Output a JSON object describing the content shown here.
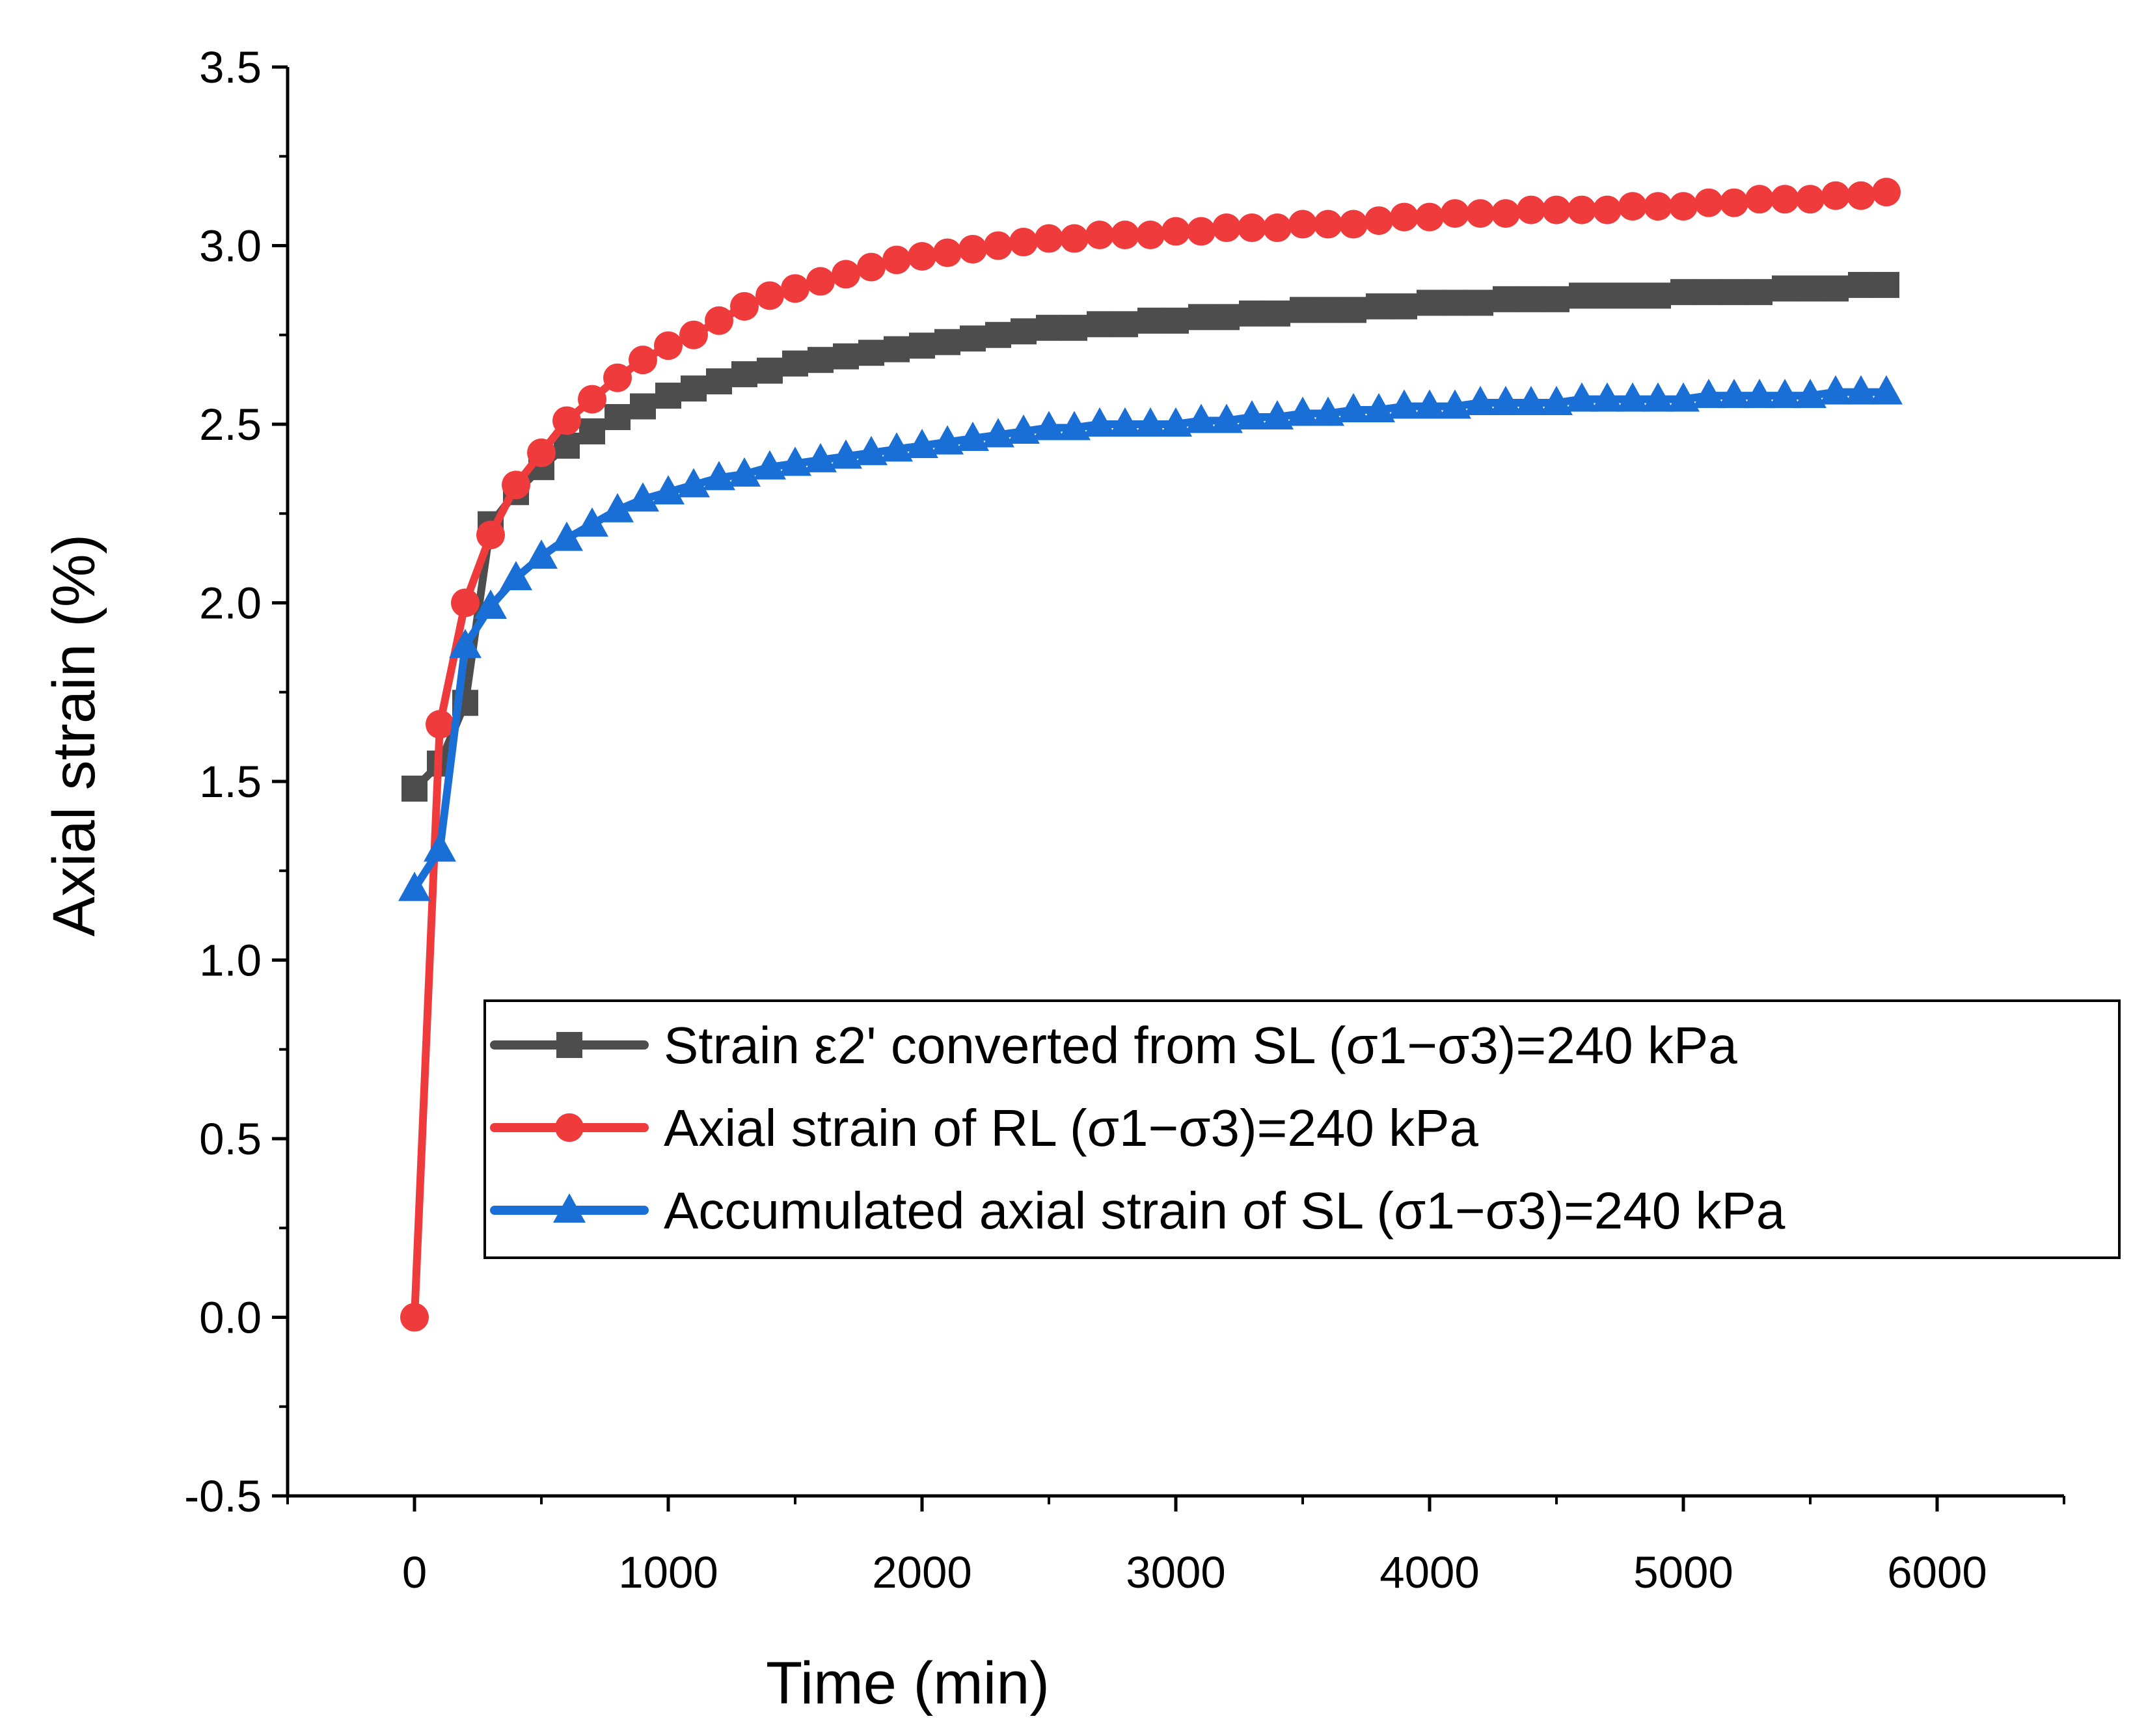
{
  "chart_data": {
    "type": "line",
    "title": "",
    "xlabel": "Time (min)",
    "ylabel": "Axial strain (%)",
    "xlim": [
      -500,
      6500
    ],
    "ylim": [
      -0.5,
      3.5
    ],
    "x_ticks": [
      0,
      1000,
      2000,
      3000,
      4000,
      5000,
      6000
    ],
    "x_tick_labels": [
      "0",
      "1000",
      "2000",
      "3000",
      "4000",
      "5000",
      "6000"
    ],
    "y_ticks": [
      -0.5,
      0.0,
      0.5,
      1.0,
      1.5,
      2.0,
      2.5,
      3.0,
      3.5
    ],
    "y_tick_labels": [
      "-0.5",
      "0.0",
      "0.5",
      "1.0",
      "1.5",
      "2.0",
      "2.5",
      "3.0",
      "3.5"
    ],
    "grid": false,
    "legend_position": "center-right",
    "series": [
      {
        "name": "Strain ε2' converted from SL (σ1−σ3)=240 kPa",
        "color": "#4d4d4d",
        "marker": "square",
        "x": [
          0,
          100,
          200,
          300,
          400,
          500,
          600,
          700,
          800,
          900,
          1000,
          1100,
          1200,
          1300,
          1400,
          1500,
          1600,
          1700,
          1800,
          1900,
          2000,
          2100,
          2200,
          2300,
          2400,
          2500,
          2600,
          2700,
          2800,
          2900,
          3000,
          3100,
          3200,
          3300,
          3400,
          3500,
          3600,
          3700,
          3800,
          3900,
          4000,
          4100,
          4200,
          4300,
          4400,
          4500,
          4600,
          4700,
          4800,
          4900,
          5000,
          5100,
          5200,
          5300,
          5400,
          5500,
          5600,
          5700,
          5800
        ],
        "values": [
          1.48,
          1.55,
          1.72,
          2.22,
          2.31,
          2.38,
          2.44,
          2.48,
          2.52,
          2.55,
          2.58,
          2.6,
          2.62,
          2.64,
          2.65,
          2.67,
          2.68,
          2.69,
          2.7,
          2.71,
          2.72,
          2.73,
          2.74,
          2.75,
          2.76,
          2.77,
          2.77,
          2.78,
          2.78,
          2.79,
          2.79,
          2.8,
          2.8,
          2.81,
          2.81,
          2.82,
          2.82,
          2.82,
          2.83,
          2.83,
          2.84,
          2.84,
          2.84,
          2.85,
          2.85,
          2.85,
          2.86,
          2.86,
          2.86,
          2.86,
          2.87,
          2.87,
          2.87,
          2.87,
          2.88,
          2.88,
          2.88,
          2.89,
          2.89
        ]
      },
      {
        "name": "Axial strain of RL (σ1−σ3)=240 kPa",
        "color": "#ef3b3b",
        "marker": "circle",
        "x": [
          0,
          100,
          200,
          300,
          400,
          500,
          600,
          700,
          800,
          900,
          1000,
          1100,
          1200,
          1300,
          1400,
          1500,
          1600,
          1700,
          1800,
          1900,
          2000,
          2100,
          2200,
          2300,
          2400,
          2500,
          2600,
          2700,
          2800,
          2900,
          3000,
          3100,
          3200,
          3300,
          3400,
          3500,
          3600,
          3700,
          3800,
          3900,
          4000,
          4100,
          4200,
          4300,
          4400,
          4500,
          4600,
          4700,
          4800,
          4900,
          5000,
          5100,
          5200,
          5300,
          5400,
          5500,
          5600,
          5700,
          5800
        ],
        "values": [
          0.0,
          1.66,
          2.0,
          2.19,
          2.33,
          2.42,
          2.51,
          2.57,
          2.63,
          2.68,
          2.72,
          2.75,
          2.79,
          2.83,
          2.86,
          2.88,
          2.9,
          2.92,
          2.94,
          2.96,
          2.97,
          2.98,
          2.99,
          3.0,
          3.01,
          3.02,
          3.02,
          3.03,
          3.03,
          3.03,
          3.04,
          3.04,
          3.05,
          3.05,
          3.05,
          3.06,
          3.06,
          3.06,
          3.07,
          3.08,
          3.08,
          3.09,
          3.09,
          3.09,
          3.1,
          3.1,
          3.1,
          3.1,
          3.11,
          3.11,
          3.11,
          3.12,
          3.12,
          3.13,
          3.13,
          3.13,
          3.14,
          3.14,
          3.15
        ]
      },
      {
        "name": "Accumulated axial strain of SL (σ1−σ3)=240 kPa",
        "color": "#1a6fd6",
        "marker": "triangle",
        "x": [
          0,
          100,
          200,
          300,
          400,
          500,
          600,
          700,
          800,
          900,
          1000,
          1100,
          1200,
          1300,
          1400,
          1500,
          1600,
          1700,
          1800,
          1900,
          2000,
          2100,
          2200,
          2300,
          2400,
          2500,
          2600,
          2700,
          2800,
          2900,
          3000,
          3100,
          3200,
          3300,
          3400,
          3500,
          3600,
          3700,
          3800,
          3900,
          4000,
          4100,
          4200,
          4300,
          4400,
          4500,
          4600,
          4700,
          4800,
          4900,
          5000,
          5100,
          5200,
          5300,
          5400,
          5500,
          5600,
          5700,
          5800
        ],
        "values": [
          1.2,
          1.31,
          1.88,
          1.99,
          2.07,
          2.13,
          2.18,
          2.22,
          2.26,
          2.29,
          2.31,
          2.33,
          2.35,
          2.36,
          2.38,
          2.39,
          2.4,
          2.41,
          2.42,
          2.43,
          2.44,
          2.45,
          2.46,
          2.47,
          2.48,
          2.49,
          2.49,
          2.5,
          2.5,
          2.5,
          2.5,
          2.51,
          2.51,
          2.52,
          2.52,
          2.53,
          2.53,
          2.54,
          2.54,
          2.55,
          2.55,
          2.55,
          2.56,
          2.56,
          2.56,
          2.56,
          2.57,
          2.57,
          2.57,
          2.57,
          2.57,
          2.58,
          2.58,
          2.58,
          2.58,
          2.58,
          2.59,
          2.59,
          2.59
        ]
      }
    ]
  }
}
